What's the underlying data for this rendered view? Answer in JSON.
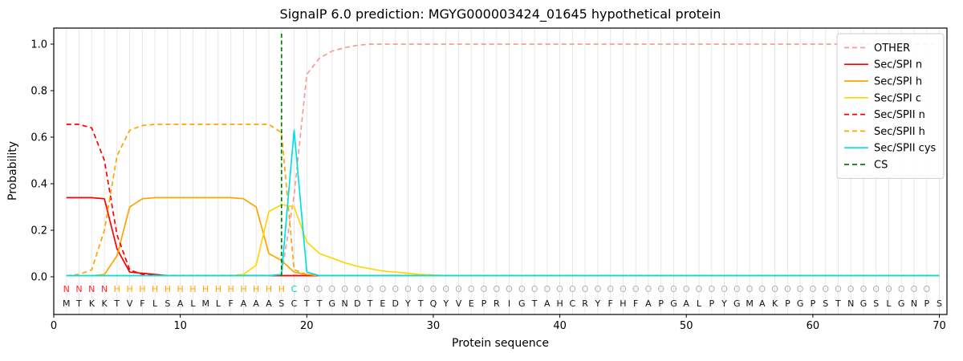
{
  "chart_data": {
    "type": "line",
    "title": "SignalP 6.0 prediction: MGYG000003424_01645 hypothetical protein",
    "xlabel": "Protein sequence",
    "ylabel": "Probability",
    "x_ticks": [
      0,
      10,
      20,
      30,
      40,
      50,
      60,
      70
    ],
    "y_ticks": [
      "0.0",
      "0.2",
      "0.4",
      "0.6",
      "0.8",
      "1.0"
    ],
    "xlim": [
      0,
      70.6
    ],
    "ylim": [
      0,
      1.0
    ],
    "grid": "vertical-per-residue",
    "legend_position": "upper-right",
    "cs_position": 18,
    "cs_label": "CS",
    "sequence": "MTKKTVFLSALMLFAAASCTTGNDTEDYTQYVEPRIGTAHCRYFHFAPGALPYGMAKPGPSTNGSLGNPS",
    "region_labels": "NNNNHHHHHHHHHHHHHHCOOOOOOOOOOOOOOOOOOOOOOOOOOOOOOOOOOOOOOOOOOOOOOOOOO",
    "region_colors": {
      "N": "#ff2a2a",
      "H": "#ffa500",
      "C": "#00c8d0",
      "O": "#b3b3b3"
    },
    "colors": {
      "grid": "#e6e6e6",
      "axes": "#000000",
      "cs": "#008000",
      "background": "#ffffff"
    },
    "series": [
      {
        "name": "OTHER",
        "color": "#f49c9c",
        "dash": "dashed",
        "values": [
          0.005,
          0.005,
          0.005,
          0.005,
          0.005,
          0.005,
          0.005,
          0.005,
          0.005,
          0.005,
          0.005,
          0.005,
          0.005,
          0.005,
          0.005,
          0.005,
          0.005,
          0.01,
          0.35,
          0.87,
          0.94,
          0.97,
          0.985,
          0.995,
          1.0,
          1.0,
          1.0,
          1.0,
          1.0,
          1.0,
          1.0,
          1.0,
          1.0,
          1.0,
          1.0,
          1.0,
          1.0,
          1.0,
          1.0,
          1.0,
          1.0,
          1.0,
          1.0,
          1.0,
          1.0,
          1.0,
          1.0,
          1.0,
          1.0,
          1.0,
          1.0,
          1.0,
          1.0,
          1.0,
          1.0,
          1.0,
          1.0,
          1.0,
          1.0,
          1.0,
          1.0,
          1.0,
          1.0,
          1.0,
          1.0,
          1.0,
          1.0,
          1.0,
          1.0,
          1.0
        ]
      },
      {
        "name": "Sec/SPI n",
        "color": "#ff0000",
        "dash": "solid",
        "values": [
          0.34,
          0.34,
          0.34,
          0.335,
          0.12,
          0.02,
          0.015,
          0.01,
          0.005,
          0.005,
          0.005,
          0.005,
          0.005,
          0.005,
          0.005,
          0.005,
          0.005,
          0.005,
          0.005,
          0.005,
          0.005,
          0.005,
          0.005,
          0.005,
          0.005,
          0.005,
          0.005,
          0.005,
          0.005,
          0.005,
          0.005,
          0.005,
          0.005,
          0.005,
          0.005,
          0.005,
          0.005,
          0.005,
          0.005,
          0.005,
          0.005,
          0.005,
          0.005,
          0.005,
          0.005,
          0.005,
          0.005,
          0.005,
          0.005,
          0.005,
          0.005,
          0.005,
          0.005,
          0.005,
          0.005,
          0.005,
          0.005,
          0.005,
          0.005,
          0.005,
          0.005,
          0.005,
          0.005,
          0.005,
          0.005,
          0.005,
          0.005,
          0.005,
          0.005,
          0.005
        ]
      },
      {
        "name": "Sec/SPI h",
        "color": "#ffa500",
        "dash": "solid",
        "values": [
          0.005,
          0.005,
          0.005,
          0.01,
          0.09,
          0.3,
          0.335,
          0.34,
          0.34,
          0.34,
          0.34,
          0.34,
          0.34,
          0.34,
          0.335,
          0.3,
          0.1,
          0.07,
          0.02,
          0.01,
          0.005,
          0.005,
          0.005,
          0.005,
          0.005,
          0.005,
          0.005,
          0.005,
          0.005,
          0.005,
          0.005,
          0.005,
          0.005,
          0.005,
          0.005,
          0.005,
          0.005,
          0.005,
          0.005,
          0.005,
          0.005,
          0.005,
          0.005,
          0.005,
          0.005,
          0.005,
          0.005,
          0.005,
          0.005,
          0.005,
          0.005,
          0.005,
          0.005,
          0.005,
          0.005,
          0.005,
          0.005,
          0.005,
          0.005,
          0.005,
          0.005,
          0.005,
          0.005,
          0.005,
          0.005,
          0.005,
          0.005,
          0.005,
          0.005,
          0.005
        ]
      },
      {
        "name": "Sec/SPI c",
        "color": "#ffd700",
        "dash": "solid",
        "values": [
          0.005,
          0.005,
          0.005,
          0.005,
          0.005,
          0.005,
          0.005,
          0.005,
          0.005,
          0.005,
          0.005,
          0.005,
          0.005,
          0.005,
          0.01,
          0.05,
          0.28,
          0.31,
          0.3,
          0.15,
          0.1,
          0.08,
          0.06,
          0.045,
          0.035,
          0.025,
          0.02,
          0.015,
          0.01,
          0.008,
          0.005,
          0.005,
          0.005,
          0.005,
          0.005,
          0.005,
          0.005,
          0.005,
          0.005,
          0.005,
          0.005,
          0.005,
          0.005,
          0.005,
          0.005,
          0.005,
          0.005,
          0.005,
          0.005,
          0.005,
          0.005,
          0.005,
          0.005,
          0.005,
          0.005,
          0.005,
          0.005,
          0.005,
          0.005,
          0.005,
          0.005,
          0.005,
          0.005,
          0.005,
          0.005,
          0.005,
          0.005,
          0.005,
          0.005,
          0.005
        ]
      },
      {
        "name": "Sec/SPII n",
        "color": "#ff0000",
        "dash": "dashed",
        "values": [
          0.655,
          0.655,
          0.64,
          0.5,
          0.18,
          0.03,
          0.01,
          0.008,
          0.005,
          0.005,
          0.005,
          0.005,
          0.005,
          0.005,
          0.005,
          0.005,
          0.005,
          0.005,
          0.005,
          0.005,
          0.005,
          0.005,
          0.005,
          0.005,
          0.005,
          0.005,
          0.005,
          0.005,
          0.005,
          0.005,
          0.005,
          0.005,
          0.005,
          0.005,
          0.005,
          0.005,
          0.005,
          0.005,
          0.005,
          0.005,
          0.005,
          0.005,
          0.005,
          0.005,
          0.005,
          0.005,
          0.005,
          0.005,
          0.005,
          0.005,
          0.005,
          0.005,
          0.005,
          0.005,
          0.005,
          0.005,
          0.005,
          0.005,
          0.005,
          0.005,
          0.005,
          0.005,
          0.005,
          0.005,
          0.005,
          0.005,
          0.005,
          0.005,
          0.005,
          0.005
        ]
      },
      {
        "name": "Sec/SPII h",
        "color": "#ffa500",
        "dash": "dashed",
        "values": [
          0.005,
          0.01,
          0.03,
          0.2,
          0.52,
          0.63,
          0.65,
          0.655,
          0.655,
          0.655,
          0.655,
          0.655,
          0.655,
          0.655,
          0.655,
          0.655,
          0.655,
          0.62,
          0.03,
          0.01,
          0.005,
          0.005,
          0.005,
          0.005,
          0.005,
          0.005,
          0.005,
          0.005,
          0.005,
          0.005,
          0.005,
          0.005,
          0.005,
          0.005,
          0.005,
          0.005,
          0.005,
          0.005,
          0.005,
          0.005,
          0.005,
          0.005,
          0.005,
          0.005,
          0.005,
          0.005,
          0.005,
          0.005,
          0.005,
          0.005,
          0.005,
          0.005,
          0.005,
          0.005,
          0.005,
          0.005,
          0.005,
          0.005,
          0.005,
          0.005,
          0.005,
          0.005,
          0.005,
          0.005,
          0.005,
          0.005,
          0.005,
          0.005,
          0.005,
          0.005
        ]
      },
      {
        "name": "Sec/SPII cys",
        "color": "#00e0e8",
        "dash": "solid",
        "values": [
          0.005,
          0.005,
          0.005,
          0.005,
          0.005,
          0.005,
          0.005,
          0.005,
          0.005,
          0.005,
          0.005,
          0.005,
          0.005,
          0.005,
          0.005,
          0.005,
          0.005,
          0.01,
          0.63,
          0.02,
          0.005,
          0.005,
          0.005,
          0.005,
          0.005,
          0.005,
          0.005,
          0.005,
          0.005,
          0.005,
          0.005,
          0.005,
          0.005,
          0.005,
          0.005,
          0.005,
          0.005,
          0.005,
          0.005,
          0.005,
          0.005,
          0.005,
          0.005,
          0.005,
          0.005,
          0.005,
          0.005,
          0.005,
          0.005,
          0.005,
          0.005,
          0.005,
          0.005,
          0.005,
          0.005,
          0.005,
          0.005,
          0.005,
          0.005,
          0.005,
          0.005,
          0.005,
          0.005,
          0.005,
          0.005,
          0.005,
          0.005,
          0.005,
          0.005,
          0.005
        ]
      }
    ]
  }
}
